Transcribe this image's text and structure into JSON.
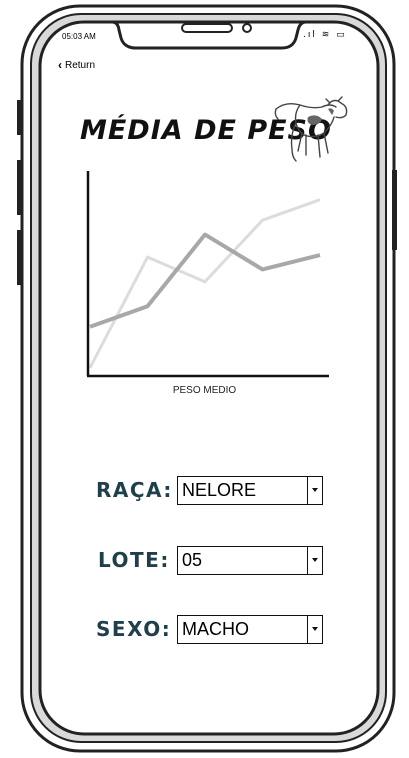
{
  "status_bar": {
    "time": "05:03 AM",
    "icons": ".ıl ≋ ▭"
  },
  "nav": {
    "back_label": "Return"
  },
  "title": "MÉDIA DE PESO",
  "chart_data": {
    "type": "line",
    "title": "",
    "xlabel": "PESO MEDIO",
    "ylabel": "",
    "x": [
      0,
      1,
      2,
      3,
      4
    ],
    "series": [
      {
        "values": [
          2.4,
          3.4,
          6.9,
          5.2,
          5.9
        ],
        "color": "#a8a8a8"
      },
      {
        "values": [
          0.4,
          5.8,
          4.6,
          7.6,
          8.6
        ],
        "color": "#dcdcdc"
      }
    ],
    "ylim": [
      0,
      10
    ],
    "grid": false
  },
  "filters": {
    "raca": {
      "label": "RAÇA:",
      "value": "NELORE"
    },
    "lote": {
      "label": "LOTE:",
      "value": "05"
    },
    "sexo": {
      "label": "SEXO:",
      "value": "MACHO"
    }
  }
}
